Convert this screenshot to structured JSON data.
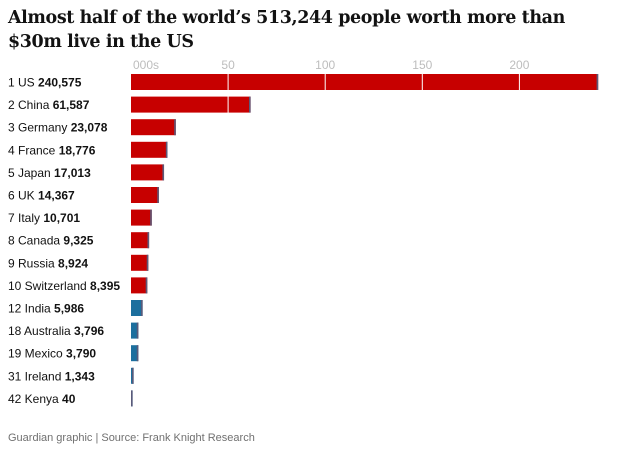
{
  "colors": {
    "highlight_bar": "#c70000",
    "other_bar": "#1c6f9e",
    "bar_edge": "#5a5a7a",
    "gridline": "#ffffff",
    "tick_text": "#bdbdbd"
  },
  "chart_data": {
    "type": "bar",
    "orientation": "horizontal",
    "title": "Almost half of the world’s 513,244 people worth more than $30m live in the US",
    "source": "Guardian graphic | Source: Frank Knight Research",
    "x_unit_label": "000s",
    "x_ticks": [
      50,
      100,
      150,
      200
    ],
    "xlim": [
      0,
      240
    ],
    "grid": true,
    "rows": [
      {
        "rank": "1",
        "country": "US",
        "value_label": "240,575",
        "value": 240575,
        "group": "top10"
      },
      {
        "rank": "2",
        "country": "China",
        "value_label": "61,587",
        "value": 61587,
        "group": "top10"
      },
      {
        "rank": "3",
        "country": "Germany",
        "value_label": "23,078",
        "value": 23078,
        "group": "top10"
      },
      {
        "rank": "4",
        "country": "France",
        "value_label": "18,776",
        "value": 18776,
        "group": "top10"
      },
      {
        "rank": "5",
        "country": "Japan",
        "value_label": "17,013",
        "value": 17013,
        "group": "top10"
      },
      {
        "rank": "6",
        "country": "UK",
        "value_label": "14,367",
        "value": 14367,
        "group": "top10"
      },
      {
        "rank": "7",
        "country": "Italy",
        "value_label": "10,701",
        "value": 10701,
        "group": "top10"
      },
      {
        "rank": "8",
        "country": "Canada",
        "value_label": "9,325",
        "value": 9325,
        "group": "top10"
      },
      {
        "rank": "9",
        "country": "Russia",
        "value_label": "8,924",
        "value": 8924,
        "group": "top10"
      },
      {
        "rank": "10",
        "country": "Switzerland",
        "value_label": "8,395",
        "value": 8395,
        "group": "top10"
      },
      {
        "rank": "12",
        "country": "India",
        "value_label": "5,986",
        "value": 5986,
        "group": "other"
      },
      {
        "rank": "18",
        "country": "Australia",
        "value_label": "3,796",
        "value": 3796,
        "group": "other"
      },
      {
        "rank": "19",
        "country": "Mexico",
        "value_label": "3,790",
        "value": 3790,
        "group": "other"
      },
      {
        "rank": "31",
        "country": "Ireland",
        "value_label": "1,343",
        "value": 1343,
        "group": "other"
      },
      {
        "rank": "42",
        "country": "Kenya",
        "value_label": "40",
        "value": 40,
        "group": "other"
      }
    ]
  }
}
